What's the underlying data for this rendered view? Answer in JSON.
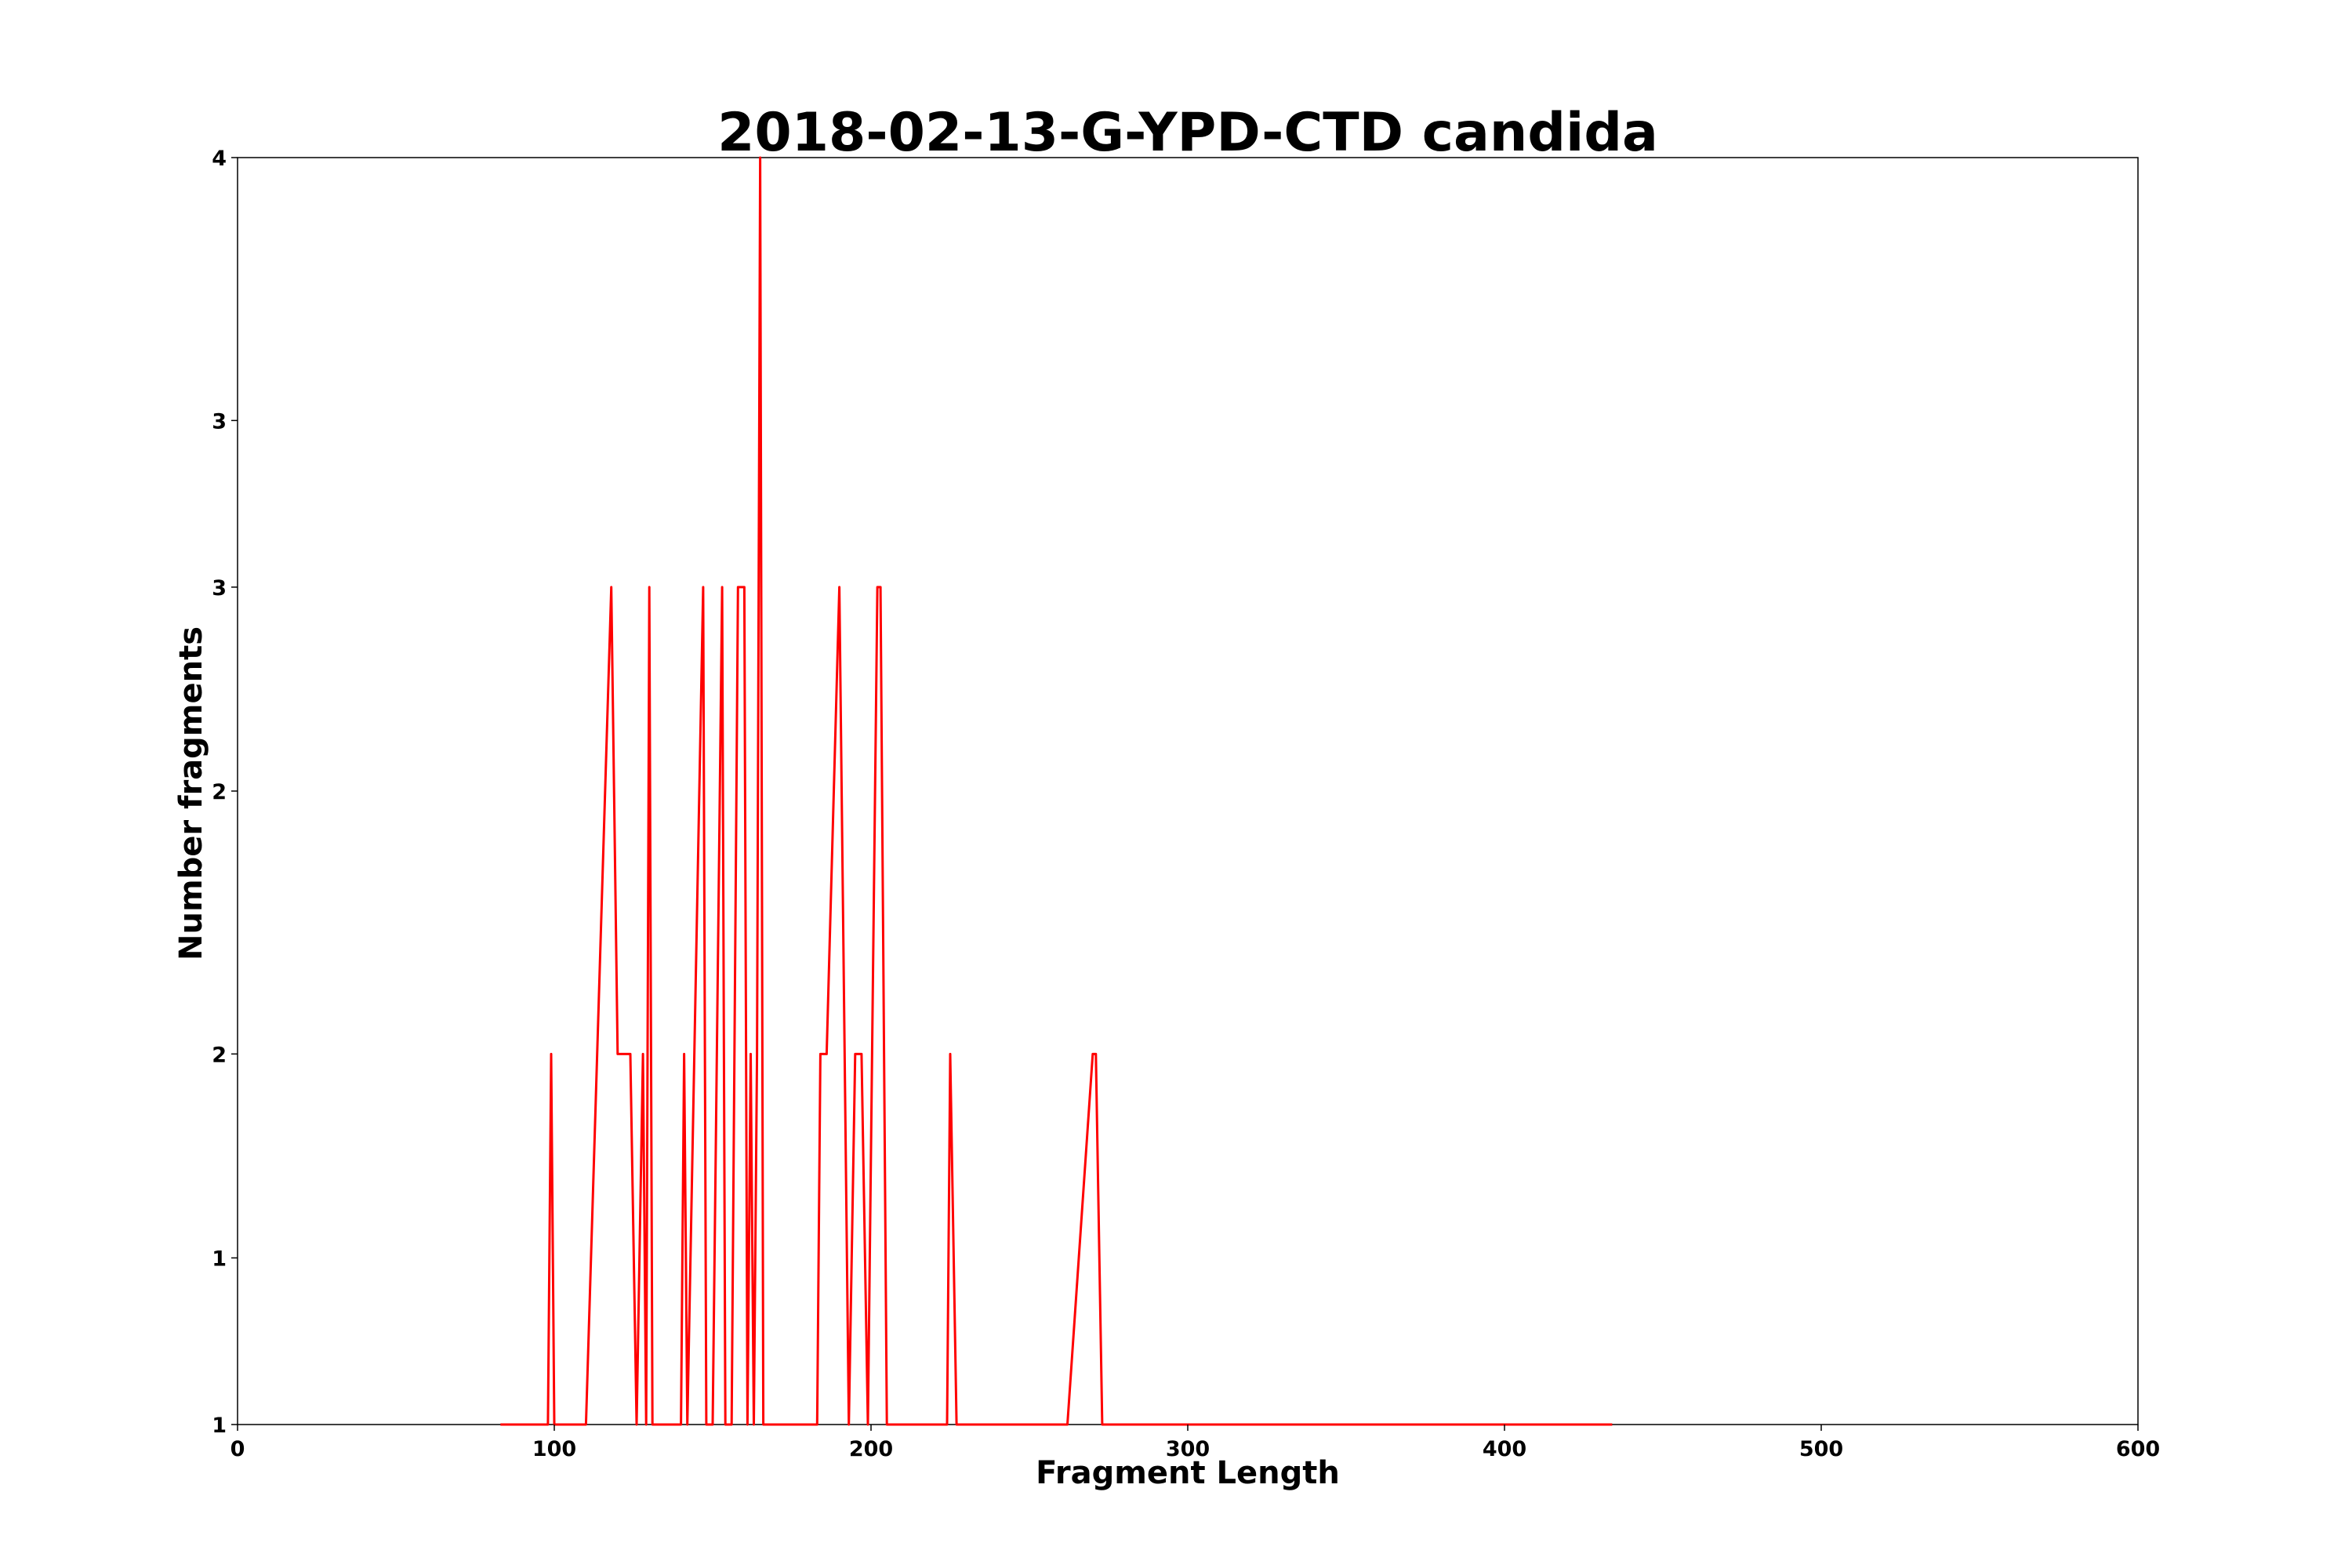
{
  "chart_data": {
    "type": "line",
    "title": "2018-02-13-G-YPD-CTD candida",
    "xlabel": "Fragment Length",
    "ylabel": "Number fragments",
    "xlim": [
      0,
      600
    ],
    "ylim": [
      1,
      4
    ],
    "y_scale": "log",
    "grid": false,
    "line_color": "#ff0000",
    "x_ticks": [
      0,
      100,
      200,
      300,
      400,
      500,
      600
    ],
    "x_tick_labels": [
      "0",
      "100",
      "200",
      "300",
      "400",
      "500",
      "600"
    ],
    "y_ticks": [
      1,
      1.2,
      1.5,
      2,
      2.5,
      3,
      4
    ],
    "y_tick_labels": [
      "1",
      "1",
      "2",
      "2",
      "3",
      "3",
      "4"
    ],
    "series": [
      {
        "x": [
          83,
          98,
          99,
          100,
          110,
          118,
          120,
          121,
          124,
          126,
          128,
          129,
          130,
          131,
          133,
          140,
          141,
          142,
          147,
          148,
          150,
          153,
          154,
          156,
          158,
          159,
          160,
          161,
          162,
          163,
          164,
          165,
          166,
          176,
          183,
          184,
          186,
          190,
          193,
          195,
          197,
          199,
          202,
          203,
          205,
          206,
          222,
          224,
          225,
          227,
          262,
          270,
          271,
          273,
          434
        ],
        "y": [
          1,
          1,
          1.5,
          1,
          1,
          2.5,
          1.5,
          1.5,
          1.5,
          1,
          1.5,
          1,
          2.5,
          1,
          1,
          1,
          1.5,
          1,
          2.5,
          1,
          1,
          2.5,
          1,
          1,
          2.5,
          2.5,
          2.5,
          1,
          1.5,
          1,
          1.5,
          4,
          1,
          1,
          1,
          1.5,
          1.5,
          2.5,
          1,
          1.5,
          1.5,
          1,
          2.5,
          2.5,
          1,
          1,
          1,
          1,
          1.5,
          1,
          1,
          1.5,
          1.5,
          1,
          1
        ]
      }
    ]
  }
}
